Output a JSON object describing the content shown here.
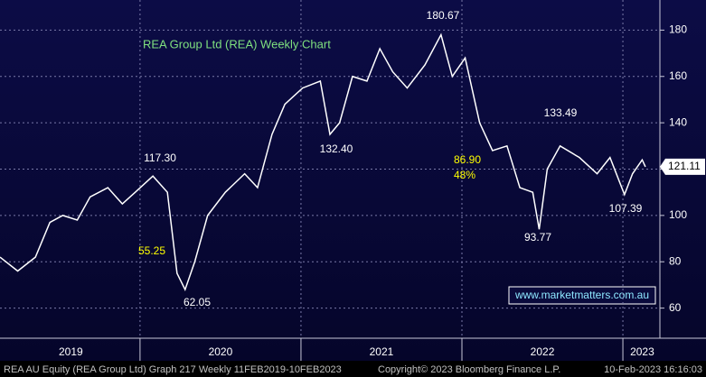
{
  "chart_data": {
    "type": "line",
    "title": "REA Group Ltd (REA) Weekly Chart",
    "series": [
      {
        "name": "REA AU Equity",
        "color": "#ffffff",
        "x": [
          2019.13,
          2019.24,
          2019.35,
          2019.44,
          2019.52,
          2019.61,
          2019.69,
          2019.8,
          2019.89,
          2019.97,
          2020.08,
          2020.17,
          2020.23,
          2020.28,
          2020.34,
          2020.42,
          2020.53,
          2020.65,
          2020.73,
          2020.82,
          2020.9,
          2021.01,
          2021.12,
          2021.18,
          2021.24,
          2021.32,
          2021.41,
          2021.49,
          2021.57,
          2021.66,
          2021.77,
          2021.87,
          2021.94,
          2022.02,
          2022.11,
          2022.19,
          2022.28,
          2022.36,
          2022.44,
          2022.48,
          2022.53,
          2022.61,
          2022.73,
          2022.84,
          2022.92,
          2023.01,
          2023.06,
          2023.12,
          2023.14
        ],
        "values": [
          82,
          76,
          82,
          97,
          100,
          98,
          108,
          112,
          105,
          110,
          117,
          110,
          75,
          68,
          80,
          100,
          110,
          118,
          112,
          135,
          148,
          155,
          158,
          135,
          140,
          160,
          158,
          172,
          162,
          155,
          165,
          178,
          160,
          168,
          140,
          128,
          130,
          112,
          110,
          94,
          120,
          130,
          125,
          118,
          125,
          109,
          118,
          124,
          121
        ]
      }
    ],
    "xlim": [
      2019.13,
      2023.23
    ],
    "xgrid": [
      2020,
      2021,
      2022,
      2023
    ],
    "x_labels": [
      {
        "value": 2019.57,
        "label": "2019"
      },
      {
        "value": 2020.5,
        "label": "2020"
      },
      {
        "value": 2021.5,
        "label": "2021"
      },
      {
        "value": 2022.5,
        "label": "2022"
      },
      {
        "value": 2023.12,
        "label": "2023"
      }
    ],
    "ylim": [
      47,
      193
    ],
    "yticks": [
      60,
      80,
      100,
      120,
      140,
      160,
      180
    ],
    "grid": true,
    "last_price": "121.11",
    "annotations": [
      {
        "text": "180.67",
        "color": "#ffffff"
      },
      {
        "text": "117.30",
        "color": "#ffffff"
      },
      {
        "text": "132.40",
        "color": "#ffffff"
      },
      {
        "text": "133.49",
        "color": "#ffffff"
      },
      {
        "text": "93.77",
        "color": "#ffffff"
      },
      {
        "text": "107.39",
        "color": "#ffffff"
      },
      {
        "text": "62.05",
        "color": "#ffffff"
      },
      {
        "text": "55.25",
        "color": "#ffff00"
      },
      {
        "text": "86.90",
        "color": "#ffff00"
      },
      {
        "text": "48%",
        "color": "#ffff00"
      }
    ],
    "watermark": "www.marketmatters.com.au",
    "footer": [
      "REA AU Equity (REA Group Ltd) Graph 217  Weekly 11FEB2019-10FEB2023",
      "Copyright© 2023 Bloomberg Finance L.P.",
      "10-Feb-2023 16:16:03"
    ]
  }
}
